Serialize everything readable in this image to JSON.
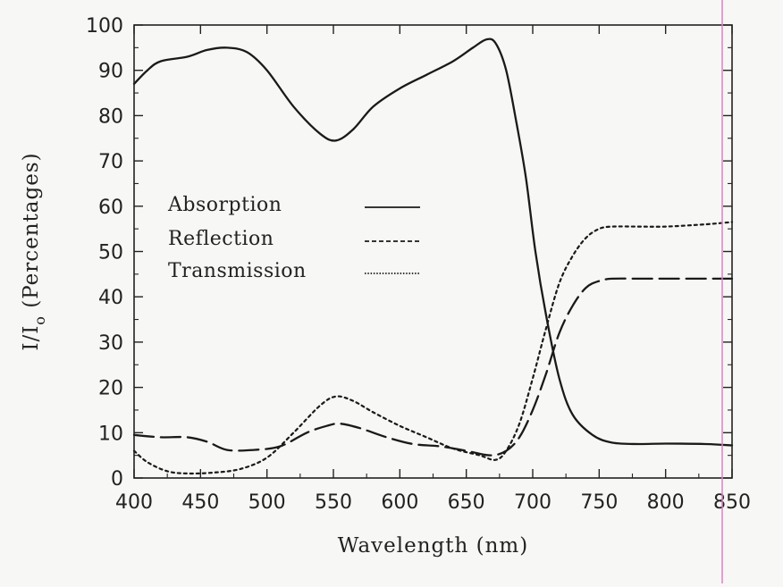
{
  "chart_data": {
    "type": "line",
    "title": "",
    "xlabel": "Wavelength (nm)",
    "ylabel": "I/I",
    "ylabel_subscript": "o",
    "ylabel_suffix": " (Percentages)",
    "xlim": [
      400,
      850
    ],
    "ylim": [
      0,
      100
    ],
    "xticks": [
      400,
      450,
      500,
      550,
      600,
      650,
      700,
      750,
      800,
      850
    ],
    "yticks": [
      0,
      10,
      20,
      30,
      40,
      50,
      60,
      70,
      80,
      90,
      100
    ],
    "grid": false,
    "legend_position": "center-left",
    "series": [
      {
        "name": "Absorption",
        "style": "solid",
        "x": [
          400,
          410,
          420,
          440,
          455,
          470,
          485,
          500,
          520,
          540,
          552,
          565,
          580,
          600,
          620,
          640,
          655,
          665,
          672,
          680,
          688,
          695,
          702,
          710,
          720,
          730,
          745,
          760,
          780,
          800,
          830,
          850
        ],
        "y": [
          87,
          90,
          92,
          93,
          94.5,
          95,
          94,
          90,
          82,
          76,
          74.5,
          77,
          82,
          86,
          89,
          92,
          95,
          96.8,
          96,
          90,
          78,
          66,
          50,
          36,
          22,
          14,
          9.5,
          7.8,
          7.5,
          7.6,
          7.5,
          7.2
        ]
      },
      {
        "name": "Reflection",
        "style": "dashed",
        "x": [
          400,
          420,
          440,
          455,
          470,
          490,
          510,
          530,
          545,
          555,
          570,
          590,
          610,
          630,
          650,
          668,
          680,
          690,
          700,
          710,
          720,
          730,
          740,
          750,
          760,
          780,
          800,
          830,
          850
        ],
        "y": [
          9.5,
          9,
          9,
          8,
          6.2,
          6.2,
          7,
          10,
          11.5,
          12,
          11,
          9,
          7.5,
          7,
          6,
          5,
          6,
          9,
          15,
          23,
          32,
          38,
          42,
          43.5,
          44,
          44,
          44,
          44,
          44
        ]
      },
      {
        "name": "Transmission",
        "style": "dotted",
        "x": [
          400,
          410,
          425,
          440,
          460,
          480,
          500,
          520,
          540,
          552,
          565,
          580,
          600,
          620,
          640,
          660,
          672,
          680,
          690,
          700,
          710,
          720,
          730,
          740,
          750,
          760,
          780,
          800,
          830,
          850
        ],
        "y": [
          6,
          3.5,
          1.5,
          1,
          1.2,
          2,
          4.5,
          10,
          16,
          18,
          17,
          14.5,
          11.5,
          9,
          6.5,
          5,
          4,
          6,
          12,
          22,
          33,
          43,
          49,
          53,
          55,
          55.5,
          55.5,
          55.5,
          56,
          56.5
        ]
      }
    ]
  }
}
